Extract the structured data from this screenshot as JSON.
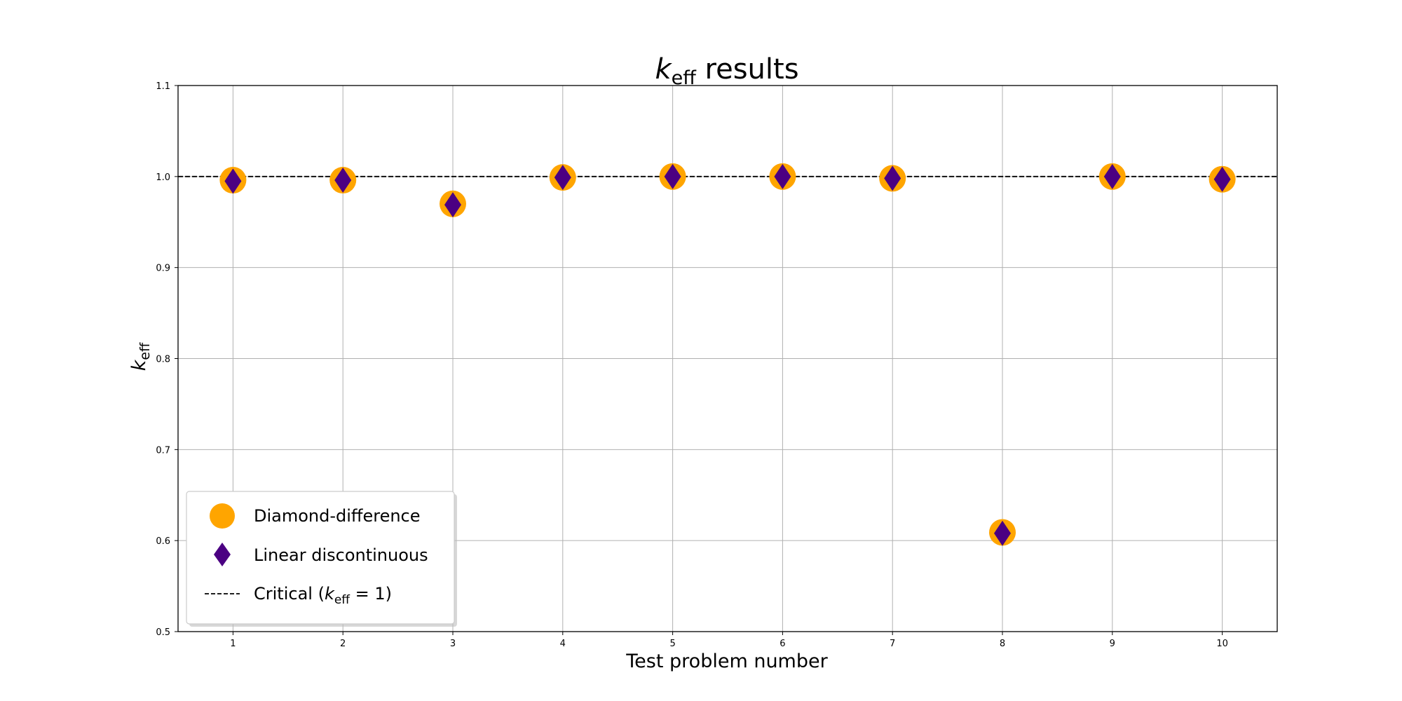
{
  "chart_data": {
    "type": "scatter",
    "title": {
      "base": "k",
      "sub": "eff",
      "rest": " results"
    },
    "xlabel": "Test problem number",
    "ylabel": {
      "base": "k",
      "sub": "eff"
    },
    "xlim": [
      0.5,
      10.5
    ],
    "ylim": [
      0.5,
      1.1
    ],
    "xticks": [
      "1",
      "2",
      "3",
      "4",
      "5",
      "6",
      "7",
      "8",
      "9",
      "10"
    ],
    "yticks": [
      "0.5",
      "0.6",
      "0.7",
      "0.8",
      "0.9",
      "1.0",
      "1.1"
    ],
    "grid": true,
    "legend_position": "lower-left",
    "series": [
      {
        "name": "Diamond-difference",
        "marker": "circle",
        "color": "#FFA500",
        "x": [
          1,
          2,
          3,
          4,
          5,
          6,
          7,
          8,
          9,
          10
        ],
        "y": [
          0.996,
          0.996,
          0.97,
          0.999,
          1.0,
          1.0,
          0.998,
          0.609,
          1.0,
          0.997
        ]
      },
      {
        "name": "Linear discontinuous",
        "marker": "diamond",
        "color": "#4B0082",
        "x": [
          1,
          2,
          3,
          4,
          5,
          6,
          7,
          8,
          9,
          10
        ],
        "y": [
          0.995,
          0.996,
          0.969,
          0.999,
          1.0,
          1.0,
          0.998,
          0.608,
          1.0,
          0.997
        ]
      }
    ],
    "reference_line": {
      "y": 1.0,
      "style": "dashed",
      "color": "#000000",
      "label": {
        "pre": "Critical (",
        "base": "k",
        "sub": "eff",
        "post": " = 1)"
      }
    }
  }
}
